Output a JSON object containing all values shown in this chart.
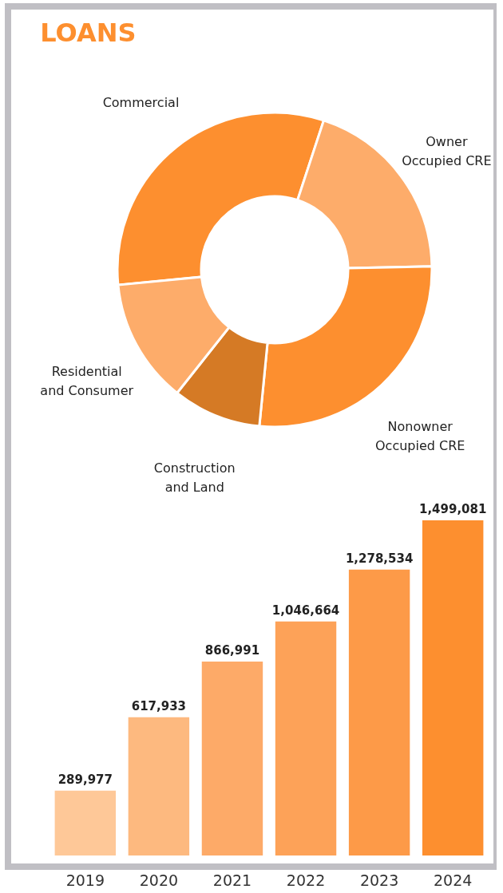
{
  "chart_data": [
    {
      "type": "donut",
      "title": "LOANS",
      "categories": [
        "Commercial",
        "Owner Occupied CRE",
        "Nonowner Occupied CRE",
        "Construction and Land",
        "Residential and Consumer"
      ],
      "values": [
        31.6,
        19.6,
        26.9,
        9.1,
        12.8
      ],
      "colors": [
        "#fd8f2f",
        "#fdac6a",
        "#fd8f2f",
        "#d57a25",
        "#fdac6a"
      ]
    },
    {
      "type": "bar",
      "categories": [
        "2019",
        "2020",
        "2021",
        "2022",
        "2023",
        "2024"
      ],
      "values": [
        289977,
        617933,
        866991,
        1046664,
        1278534,
        1499081
      ],
      "colors": [
        "#fec898",
        "#fdb97f",
        "#fdaa68",
        "#fda258",
        "#fd9a48",
        "#fd8f2f"
      ],
      "value_labels": [
        "289,977",
        "617,933",
        "866,991",
        "1,046,664",
        "1,278,534",
        "1,499,081"
      ]
    }
  ]
}
